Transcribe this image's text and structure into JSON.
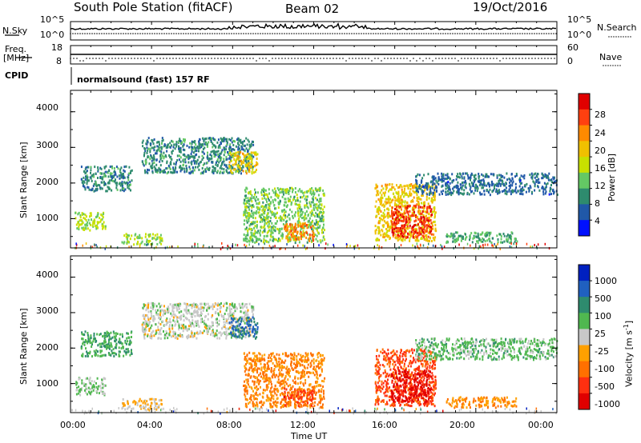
{
  "header": {
    "station": "South Pole Station (fitACF)",
    "beam": "Beam 02",
    "date": "19/Oct/2016"
  },
  "noise_panel": {
    "left_label": "N.Sky",
    "right_label": "N.Search",
    "left_ticks": [
      "10^5",
      "10^0"
    ],
    "right_ticks": [
      "10^5",
      "10^0"
    ]
  },
  "freq_panel": {
    "left_label_1": "Freq.",
    "left_label_2": "[MHz]",
    "right_label": "Nave",
    "left_ticks": [
      "18",
      "8"
    ],
    "right_ticks": [
      "60",
      "0"
    ]
  },
  "cpid": {
    "label": "CPID",
    "mode": "normalsound (fast) 157 RF"
  },
  "power_panel": {
    "ylabel": "Slant Range [km]",
    "yticks": [
      "4000",
      "3000",
      "2000",
      "1000"
    ],
    "colorbar_label": "Power [dB]",
    "colorbar_ticks": [
      "28",
      "24",
      "20",
      "16",
      "12",
      "8",
      "4"
    ],
    "colorbar_colors": [
      "#e00000",
      "#ff4010",
      "#ff8a00",
      "#f0c000",
      "#c8e000",
      "#64c864",
      "#2e8b6e",
      "#2058a8",
      "#0010ff"
    ]
  },
  "velocity_panel": {
    "ylabel": "Slant Range [km]",
    "yticks": [
      "4000",
      "3000",
      "2000",
      "1000"
    ],
    "colorbar_label": "Velocity [m s",
    "colorbar_label_sup": "-1",
    "colorbar_label_end": "]",
    "colorbar_ticks": [
      "1000",
      "500",
      "100",
      "25",
      "-25",
      "-100",
      "-500",
      "-1000"
    ],
    "colorbar_colors": [
      "#0020c0",
      "#2060c0",
      "#2e8b6e",
      "#50b850",
      "#c8c8c8",
      "#ffa000",
      "#ff7000",
      "#ff3010",
      "#e00000"
    ]
  },
  "x_axis": {
    "label": "Time UT",
    "ticks": [
      "00:00",
      "04:00",
      "08:00",
      "12:00",
      "16:00",
      "20:00",
      "00:00"
    ]
  },
  "chart_data": {
    "type": "heatmap",
    "title": "South Pole Station (fitACF) Beam 02 19/Oct/2016",
    "xlabel": "Time UT",
    "ylabel": "Slant Range [km]",
    "xlim": [
      0,
      24
    ],
    "ylim": [
      180,
      4600
    ],
    "xticks": [
      "00:00",
      "04:00",
      "08:00",
      "12:00",
      "16:00",
      "20:00",
      "00:00"
    ],
    "yticks": [
      1000,
      2000,
      3000,
      4000
    ],
    "panels": [
      {
        "name": "Power [dB]",
        "colorbar_range": [
          0,
          30
        ],
        "colorbar_ticks": [
          4,
          8,
          12,
          16,
          20,
          24,
          28
        ],
        "echo_regions": [
          {
            "t_start": 0.2,
            "t_end": 1.7,
            "r_min": 700,
            "r_max": 1200,
            "level": 14
          },
          {
            "t_start": 0.5,
            "t_end": 3.0,
            "r_min": 1800,
            "r_max": 2500,
            "level": 8
          },
          {
            "t_start": 2.5,
            "t_end": 4.5,
            "r_min": 300,
            "r_max": 600,
            "level": 14
          },
          {
            "t_start": 3.5,
            "t_end": 9.0,
            "r_min": 2300,
            "r_max": 3300,
            "level": 8
          },
          {
            "t_start": 7.8,
            "t_end": 9.2,
            "r_min": 2300,
            "r_max": 2900,
            "level": 18
          },
          {
            "t_start": 8.5,
            "t_end": 12.5,
            "r_min": 350,
            "r_max": 1900,
            "level": 12
          },
          {
            "t_start": 10.5,
            "t_end": 12.0,
            "r_min": 400,
            "r_max": 900,
            "level": 22
          },
          {
            "t_start": 15.0,
            "t_end": 18.0,
            "r_min": 400,
            "r_max": 2000,
            "level": 18
          },
          {
            "t_start": 15.8,
            "t_end": 17.8,
            "r_min": 500,
            "r_max": 1400,
            "level": 26
          },
          {
            "t_start": 18.5,
            "t_end": 22.0,
            "r_min": 350,
            "r_max": 650,
            "level": 10
          },
          {
            "t_start": 17.0,
            "t_end": 24.0,
            "r_min": 1700,
            "r_max": 2300,
            "level": 6
          }
        ]
      },
      {
        "name": "Velocity [m s^-1]",
        "colorbar_range": [
          -1000,
          1000
        ],
        "colorbar_ticks": [
          1000,
          500,
          100,
          25,
          -25,
          -100,
          -500,
          -1000
        ],
        "echo_regions": [
          {
            "t_start": 0.2,
            "t_end": 1.7,
            "r_min": 700,
            "r_max": 1200,
            "level": 150
          },
          {
            "t_start": 0.5,
            "t_end": 3.0,
            "r_min": 1800,
            "r_max": 2500,
            "level": 300
          },
          {
            "t_start": 2.5,
            "t_end": 4.5,
            "r_min": 300,
            "r_max": 600,
            "level": -150
          },
          {
            "t_start": 3.5,
            "t_end": 9.0,
            "r_min": 2300,
            "r_max": 3300,
            "level": 20
          },
          {
            "t_start": 7.8,
            "t_end": 9.2,
            "r_min": 2300,
            "r_max": 2900,
            "level": 600
          },
          {
            "t_start": 8.5,
            "t_end": 12.5,
            "r_min": 350,
            "r_max": 1900,
            "level": -350
          },
          {
            "t_start": 10.5,
            "t_end": 12.0,
            "r_min": 400,
            "r_max": 900,
            "level": -600
          },
          {
            "t_start": 15.0,
            "t_end": 18.0,
            "r_min": 400,
            "r_max": 2000,
            "level": -600
          },
          {
            "t_start": 15.8,
            "t_end": 17.8,
            "r_min": 500,
            "r_max": 1400,
            "level": -900
          },
          {
            "t_start": 18.5,
            "t_end": 22.0,
            "r_min": 350,
            "r_max": 650,
            "level": -300
          },
          {
            "t_start": 17.0,
            "t_end": 24.0,
            "r_min": 1700,
            "r_max": 2300,
            "level": 200
          }
        ]
      }
    ]
  }
}
